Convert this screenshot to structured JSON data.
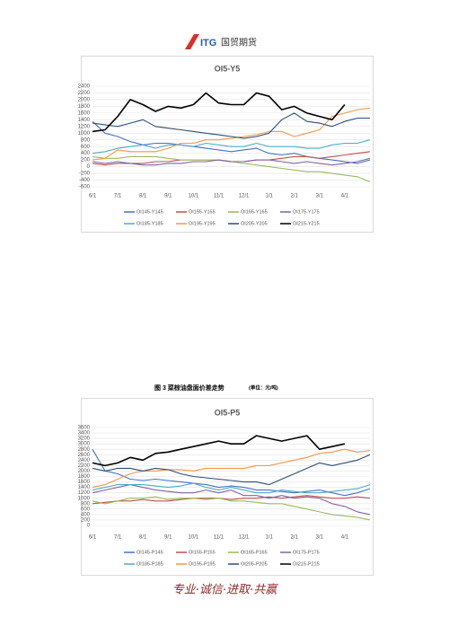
{
  "header": {
    "logo_mark": "ITG",
    "logo_text": "国贸期货"
  },
  "chart_data": [
    {
      "type": "line",
      "title": "OI5-Y5",
      "categories": [
        "6/1",
        null,
        "7/1",
        null,
        "8/1",
        null,
        "9/1",
        null,
        "10/1",
        null,
        "11/1",
        null,
        "12/1",
        null,
        "1/1",
        null,
        "2/1",
        null,
        "3/1",
        null,
        "4/1",
        null,
        null
      ],
      "ylim": [
        -600,
        2400
      ],
      "yticks": [
        -600,
        -400,
        -200,
        0,
        200,
        400,
        600,
        800,
        1000,
        1200,
        1400,
        1600,
        1800,
        2000,
        2200,
        2400
      ],
      "grid": true,
      "series": [
        {
          "name": "OI145-Y145",
          "color": "#4472c4",
          "values": [
            1350,
            1000,
            900,
            750,
            650,
            700,
            700,
            650,
            600,
            550,
            500,
            450,
            500,
            550,
            400,
            350,
            400,
            300,
            250,
            200,
            150,
            100,
            200
          ]
        },
        {
          "name": "OI155-Y155",
          "color": "#c0504d",
          "values": [
            100,
            50,
            100,
            100,
            100,
            150,
            150,
            200,
            200,
            200,
            200,
            150,
            150,
            200,
            200,
            250,
            300,
            300,
            250,
            300,
            350,
            400,
            450
          ]
        },
        {
          "name": "OI165-Y165",
          "color": "#9bbb59",
          "values": [
            300,
            250,
            250,
            300,
            300,
            300,
            250,
            200,
            200,
            200,
            200,
            150,
            100,
            50,
            0,
            -50,
            -100,
            -150,
            -150,
            -200,
            -250,
            -300,
            -450
          ]
        },
        {
          "name": "OI175-Y175",
          "color": "#8064a2",
          "values": [
            150,
            100,
            150,
            100,
            50,
            50,
            100,
            100,
            150,
            150,
            200,
            150,
            150,
            200,
            200,
            150,
            100,
            150,
            100,
            50,
            100,
            150,
            250
          ]
        },
        {
          "name": "OI185-Y185",
          "color": "#4bacc6",
          "values": [
            400,
            450,
            550,
            600,
            650,
            550,
            650,
            650,
            600,
            700,
            650,
            600,
            600,
            700,
            600,
            600,
            600,
            550,
            550,
            650,
            700,
            700,
            800
          ]
        },
        {
          "name": "OI195-Y195",
          "color": "#f79646",
          "values": [
            200,
            250,
            500,
            450,
            450,
            450,
            550,
            700,
            700,
            800,
            800,
            850,
            900,
            950,
            1050,
            1050,
            900,
            1000,
            1100,
            1500,
            1600,
            1700,
            1750
          ]
        },
        {
          "name": "OI205-Y205",
          "color": "#2c4d75",
          "values": [
            1300,
            1250,
            1200,
            1300,
            1400,
            1200,
            1150,
            1100,
            1050,
            1000,
            950,
            900,
            850,
            900,
            1000,
            1400,
            1600,
            1350,
            1300,
            1200,
            1350,
            1450,
            1450
          ]
        },
        {
          "name": "OI215-Y215",
          "color": "#000000",
          "values": [
            1050,
            1100,
            1500,
            2000,
            1850,
            1650,
            1800,
            1750,
            1850,
            2200,
            1900,
            1850,
            1850,
            2200,
            2100,
            1700,
            1800,
            1600,
            1500,
            1400,
            1850,
            null,
            null
          ]
        }
      ]
    },
    {
      "type": "line",
      "title": "OI5-P5",
      "categories": [
        "6/1",
        null,
        "7/1",
        null,
        "8/1",
        null,
        "9/1",
        null,
        "10/1",
        null,
        "11/1",
        null,
        "12/1",
        null,
        "1/1",
        null,
        "2/1",
        null,
        "3/1",
        null,
        "4/1",
        null,
        null
      ],
      "ylim": [
        0,
        3600
      ],
      "yticks": [
        0,
        200,
        400,
        600,
        800,
        1000,
        1200,
        1400,
        1600,
        1800,
        2000,
        2200,
        2400,
        2600,
        2800,
        3000,
        3200,
        3400,
        3600
      ],
      "grid": true,
      "series": [
        {
          "name": "OI145-P145",
          "color": "#4472c4",
          "values": [
            2800,
            2000,
            1900,
            1700,
            1650,
            1700,
            1650,
            1600,
            1550,
            1500,
            1400,
            1450,
            1400,
            1300,
            1300,
            1250,
            1200,
            1250,
            1300,
            1200,
            1100,
            1200,
            1350
          ]
        },
        {
          "name": "OI155-P155",
          "color": "#c0504d",
          "values": [
            800,
            850,
            900,
            900,
            950,
            900,
            900,
            950,
            1000,
            1000,
            1000,
            950,
            1000,
            1000,
            1050,
            1000,
            1050,
            1100,
            1050,
            1000,
            1000,
            1050,
            1000
          ]
        },
        {
          "name": "OI165-P165",
          "color": "#9bbb59",
          "values": [
            900,
            800,
            900,
            1000,
            1000,
            1050,
            950,
            1000,
            1000,
            950,
            1000,
            900,
            900,
            850,
            800,
            800,
            700,
            600,
            500,
            400,
            350,
            300,
            200
          ]
        },
        {
          "name": "OI175-P175",
          "color": "#8064a2",
          "values": [
            1200,
            1300,
            1400,
            1500,
            1400,
            1300,
            1250,
            1200,
            1200,
            1300,
            1200,
            1300,
            1100,
            1100,
            1000,
            1100,
            1000,
            1050,
            1000,
            800,
            700,
            500,
            400
          ]
        },
        {
          "name": "OI185-P185",
          "color": "#4bacc6",
          "values": [
            1300,
            1400,
            1500,
            1500,
            1500,
            1450,
            1400,
            1450,
            1550,
            1400,
            1300,
            1400,
            1300,
            1200,
            1200,
            1300,
            1250,
            1200,
            1200,
            1250,
            1300,
            1350,
            1500
          ]
        },
        {
          "name": "OI195-P195",
          "color": "#f79646",
          "values": [
            1400,
            1500,
            1700,
            1900,
            2000,
            2000,
            2050,
            2050,
            2000,
            2100,
            2100,
            2100,
            2100,
            2200,
            2200,
            2300,
            2400,
            2500,
            2650,
            2700,
            2800,
            2700,
            2750
          ]
        },
        {
          "name": "OI205-P205",
          "color": "#2c4d75",
          "values": [
            2100,
            2000,
            2100,
            2100,
            2000,
            2100,
            2050,
            1900,
            1800,
            1750,
            1700,
            1650,
            1600,
            1600,
            1500,
            1700,
            1900,
            2100,
            2300,
            2200,
            2300,
            2400,
            2600
          ]
        },
        {
          "name": "OI215-P215",
          "color": "#000000",
          "values": [
            2300,
            2200,
            2300,
            2500,
            2400,
            2650,
            2700,
            2800,
            2900,
            3000,
            3100,
            3000,
            3000,
            3300,
            3200,
            3100,
            3200,
            3300,
            2800,
            2900,
            3000,
            null,
            null
          ]
        }
      ]
    }
  ],
  "caption": {
    "label": "图 3  菜棕油盘面价差走势",
    "unit": "(单位：元/吨)"
  },
  "footer": "专业·诚信·进取·共赢"
}
